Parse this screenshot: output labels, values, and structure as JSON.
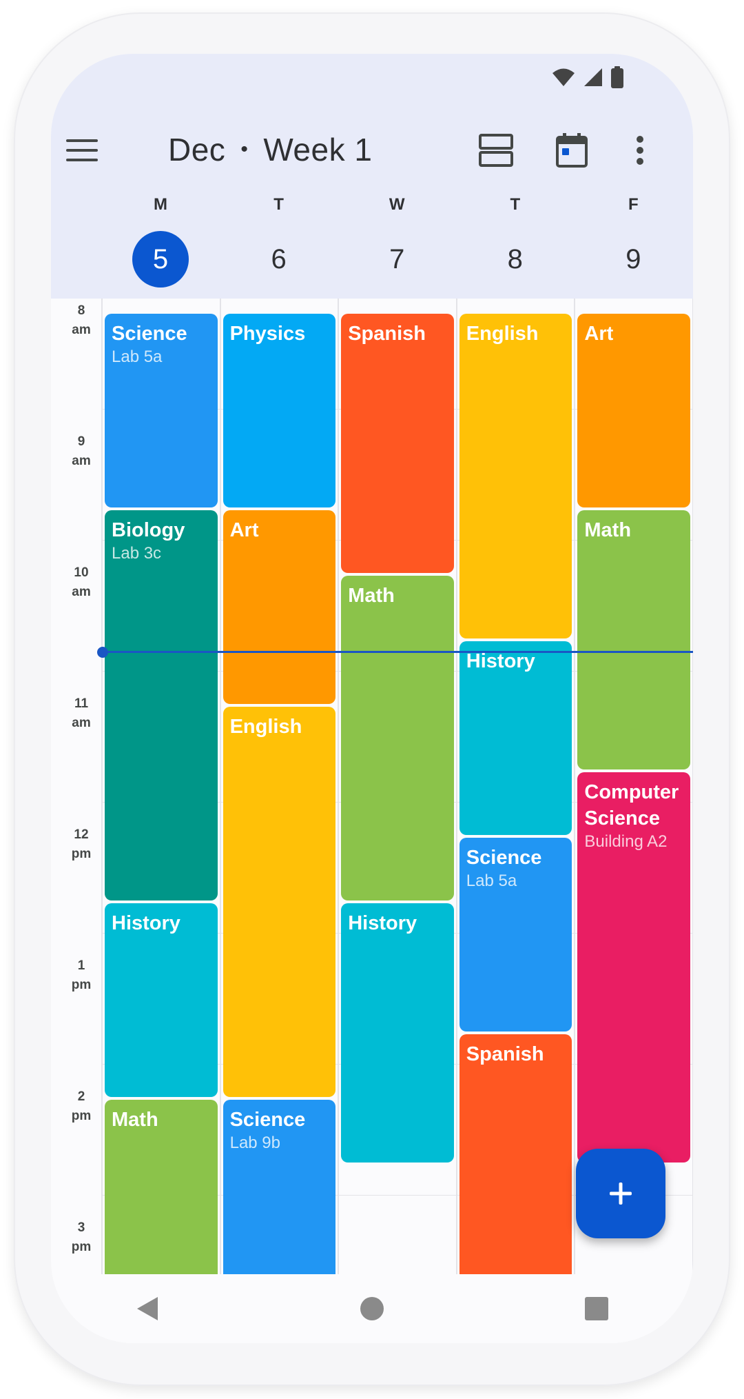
{
  "header": {
    "month": "Dec",
    "separator": "•",
    "week": "Week 1",
    "menu_icon": "menu-icon",
    "view_icon": "view-agenda-icon",
    "today_icon": "calendar-today-icon",
    "more_icon": "more-vert-icon"
  },
  "status_bar": {
    "icons": [
      "wifi-icon",
      "signal-icon",
      "battery-icon"
    ]
  },
  "days": [
    {
      "letter": "M",
      "number": "5",
      "today": true
    },
    {
      "letter": "T",
      "number": "6",
      "today": false
    },
    {
      "letter": "W",
      "number": "7",
      "today": false
    },
    {
      "letter": "T",
      "number": "8",
      "today": false
    },
    {
      "letter": "F",
      "number": "9",
      "today": false
    }
  ],
  "times": [
    {
      "hour": "8",
      "period": "am"
    },
    {
      "hour": "9",
      "period": "am"
    },
    {
      "hour": "10",
      "period": "am"
    },
    {
      "hour": "11",
      "period": "am"
    },
    {
      "hour": "12",
      "period": "pm"
    },
    {
      "hour": "1",
      "period": "pm"
    },
    {
      "hour": "2",
      "period": "pm"
    },
    {
      "hour": "3",
      "period": "pm"
    }
  ],
  "events": [
    {
      "day": 0,
      "start": "8:00",
      "end": "9:30",
      "title": "Science",
      "sub": "Lab 5a",
      "color": "#2196f3"
    },
    {
      "day": 0,
      "start": "9:30",
      "end": "12:30",
      "title": "Biology",
      "sub": "Lab 3c",
      "color": "#009688"
    },
    {
      "day": 0,
      "start": "12:30",
      "end": "2:00",
      "title": "History",
      "sub": "",
      "color": "#00bcd4"
    },
    {
      "day": 0,
      "start": "2:00",
      "end": "3:30",
      "title": "Math",
      "sub": "",
      "color": "#8bc34a"
    },
    {
      "day": 1,
      "start": "8:00",
      "end": "9:30",
      "title": "Physics",
      "sub": "",
      "color": "#03a9f4"
    },
    {
      "day": 1,
      "start": "9:30",
      "end": "11:00",
      "title": "Art",
      "sub": "",
      "color": "#ff9800"
    },
    {
      "day": 1,
      "start": "11:00",
      "end": "2:00",
      "title": "English",
      "sub": "",
      "color": "#ffc107"
    },
    {
      "day": 1,
      "start": "2:00",
      "end": "3:30",
      "title": "Science",
      "sub": "Lab 9b",
      "color": "#2196f3"
    },
    {
      "day": 2,
      "start": "8:00",
      "end": "10:00",
      "title": "Spanish",
      "sub": "",
      "color": "#ff5722"
    },
    {
      "day": 2,
      "start": "10:00",
      "end": "12:30",
      "title": "Math",
      "sub": "",
      "color": "#8bc34a"
    },
    {
      "day": 2,
      "start": "12:30",
      "end": "2:30",
      "title": "History",
      "sub": "",
      "color": "#00bcd4"
    },
    {
      "day": 3,
      "start": "8:00",
      "end": "10:30",
      "title": "English",
      "sub": "",
      "color": "#ffc107"
    },
    {
      "day": 3,
      "start": "10:30",
      "end": "12:00",
      "title": "History",
      "sub": "",
      "color": "#00bcd4"
    },
    {
      "day": 3,
      "start": "12:00",
      "end": "1:30",
      "title": "Science",
      "sub": "Lab 5a",
      "color": "#2196f3"
    },
    {
      "day": 3,
      "start": "1:30",
      "end": "3:30",
      "title": "Spanish",
      "sub": "",
      "color": "#ff5722"
    },
    {
      "day": 4,
      "start": "8:00",
      "end": "9:30",
      "title": "Art",
      "sub": "",
      "color": "#ff9800"
    },
    {
      "day": 4,
      "start": "9:30",
      "end": "11:30",
      "title": "Math",
      "sub": "",
      "color": "#8bc34a"
    },
    {
      "day": 4,
      "start": "11:30",
      "end": "2:30",
      "title": "Computer Science",
      "sub": "Building A2",
      "color": "#e91e63"
    }
  ],
  "now_time": "10:35",
  "fab": {
    "icon": "add-icon",
    "label": "+"
  },
  "nav": {
    "back_icon": "back-icon",
    "home_icon": "home-icon",
    "recents_icon": "recents-icon"
  },
  "colors": {
    "accent": "#0b57d0",
    "header_bg": "#e8ebf9"
  }
}
